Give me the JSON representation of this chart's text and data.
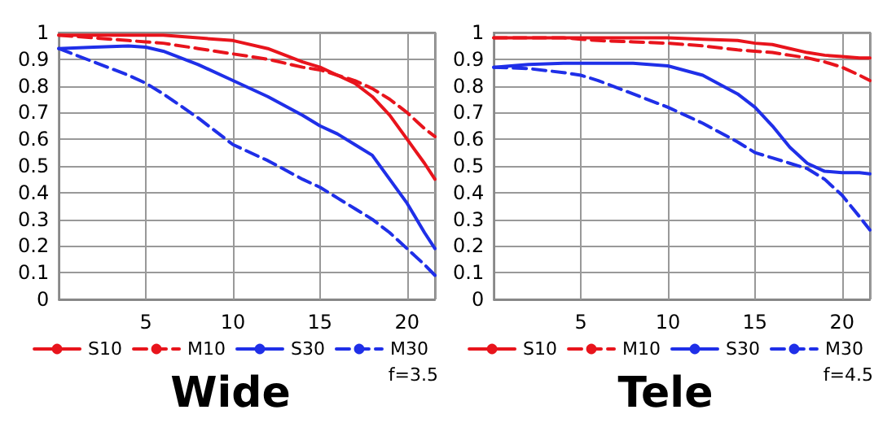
{
  "chart_data": [
    {
      "type": "line",
      "title": "Wide",
      "annotations": [
        "f=3.5"
      ],
      "x": [
        0,
        2,
        4,
        5,
        6,
        8,
        10,
        12,
        14,
        15,
        16,
        17,
        18,
        19,
        20,
        21,
        21.6
      ],
      "xlim": [
        0,
        21.6
      ],
      "xticks": [
        5,
        10,
        15,
        20
      ],
      "ylim": [
        0,
        1
      ],
      "yticks": [
        0,
        0.1,
        0.2,
        0.3,
        0.4,
        0.5,
        0.6,
        0.7,
        0.8,
        0.9,
        1
      ],
      "grid": true,
      "legend": "bottom",
      "marker": "none",
      "series": [
        {
          "name": "S10",
          "color": "#e8141c",
          "line_style": "solid",
          "values": [
            0.99,
            0.99,
            0.99,
            0.99,
            0.99,
            0.98,
            0.97,
            0.94,
            0.89,
            0.87,
            0.84,
            0.81,
            0.76,
            0.69,
            0.6,
            0.51,
            0.45
          ]
        },
        {
          "name": "M10",
          "color": "#e8141c",
          "line_style": "dashed",
          "values": [
            0.99,
            0.98,
            0.97,
            0.965,
            0.96,
            0.94,
            0.92,
            0.9,
            0.87,
            0.86,
            0.84,
            0.82,
            0.79,
            0.75,
            0.7,
            0.64,
            0.61
          ]
        },
        {
          "name": "S30",
          "color": "#1f2fe8",
          "line_style": "solid",
          "values": [
            0.94,
            0.945,
            0.95,
            0.945,
            0.93,
            0.88,
            0.82,
            0.76,
            0.69,
            0.65,
            0.62,
            0.58,
            0.54,
            0.45,
            0.36,
            0.25,
            0.19
          ]
        },
        {
          "name": "M30",
          "color": "#1f2fe8",
          "line_style": "dashed",
          "values": [
            0.94,
            0.89,
            0.84,
            0.81,
            0.77,
            0.68,
            0.58,
            0.52,
            0.45,
            0.42,
            0.38,
            0.34,
            0.3,
            0.25,
            0.19,
            0.13,
            0.09
          ]
        }
      ]
    },
    {
      "type": "line",
      "title": "Tele",
      "annotations": [
        "f=4.5"
      ],
      "x": [
        0,
        2,
        4,
        5,
        6,
        8,
        10,
        12,
        14,
        15,
        16,
        17,
        18,
        19,
        20,
        21,
        21.6
      ],
      "xlim": [
        0,
        21.6
      ],
      "xticks": [
        5,
        10,
        15,
        20
      ],
      "ylim": [
        0,
        1
      ],
      "yticks": [
        0,
        0.1,
        0.2,
        0.3,
        0.4,
        0.5,
        0.6,
        0.7,
        0.8,
        0.9,
        1
      ],
      "grid": true,
      "legend": "bottom",
      "marker": "none",
      "series": [
        {
          "name": "S10",
          "color": "#e8141c",
          "line_style": "solid",
          "values": [
            0.98,
            0.98,
            0.98,
            0.98,
            0.98,
            0.98,
            0.98,
            0.975,
            0.97,
            0.96,
            0.955,
            0.94,
            0.925,
            0.915,
            0.91,
            0.905,
            0.905
          ]
        },
        {
          "name": "M10",
          "color": "#e8141c",
          "line_style": "dashed",
          "values": [
            0.98,
            0.98,
            0.98,
            0.975,
            0.97,
            0.965,
            0.96,
            0.95,
            0.935,
            0.93,
            0.925,
            0.915,
            0.905,
            0.89,
            0.87,
            0.84,
            0.82
          ]
        },
        {
          "name": "S30",
          "color": "#1f2fe8",
          "line_style": "solid",
          "values": [
            0.87,
            0.88,
            0.885,
            0.885,
            0.885,
            0.885,
            0.875,
            0.84,
            0.77,
            0.72,
            0.65,
            0.57,
            0.51,
            0.48,
            0.475,
            0.475,
            0.47
          ]
        },
        {
          "name": "M30",
          "color": "#1f2fe8",
          "line_style": "dashed",
          "values": [
            0.87,
            0.865,
            0.85,
            0.84,
            0.82,
            0.77,
            0.72,
            0.66,
            0.59,
            0.55,
            0.53,
            0.51,
            0.49,
            0.45,
            0.39,
            0.31,
            0.26
          ]
        }
      ]
    }
  ]
}
